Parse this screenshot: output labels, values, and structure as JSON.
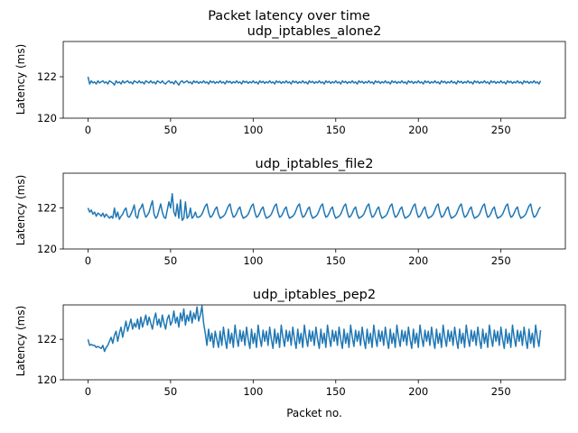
{
  "suptitle": "Packet latency over time",
  "chart_data": [
    {
      "type": "line",
      "title": "udp_iptables_alone2",
      "xlabel": "",
      "ylabel": "Latency (ms)",
      "xlim": [
        -15,
        289
      ],
      "ylim": [
        120,
        123.7
      ],
      "xticks": [
        0,
        50,
        100,
        150,
        200,
        250
      ],
      "yticks": [
        120,
        122
      ],
      "color": "#1f77b4",
      "n_points": 275,
      "series": [
        {
          "x_start": 0,
          "x_step": 1,
          "values": [
            122.0,
            121.65,
            121.8,
            121.7,
            121.75,
            121.65,
            121.8,
            121.7,
            121.75,
            121.8,
            121.7,
            121.75,
            121.65,
            121.8,
            121.75,
            121.7,
            121.6,
            121.8,
            121.7,
            121.75,
            121.65,
            121.8,
            121.7,
            121.75,
            121.8,
            121.7,
            121.75,
            121.65,
            121.8,
            121.75,
            121.7,
            121.8,
            121.7,
            121.75,
            121.65,
            121.8,
            121.75,
            121.7,
            121.8,
            121.7,
            121.75,
            121.65,
            121.8,
            121.75,
            121.7,
            121.8,
            121.7,
            121.65,
            121.75,
            121.8,
            121.7,
            121.75,
            121.65,
            121.8,
            121.7,
            121.6,
            121.75,
            121.8,
            121.7,
            121.75
          ],
          "pattern_values": [
            121.8,
            121.7,
            121.75,
            121.65,
            121.8,
            121.72,
            121.78,
            121.68,
            121.76,
            121.7
          ]
        }
      ]
    },
    {
      "type": "line",
      "title": "udp_iptables_file2",
      "xlabel": "",
      "ylabel": "Latency (ms)",
      "xlim": [
        -15,
        289
      ],
      "ylim": [
        120,
        123.7
      ],
      "xticks": [
        0,
        50,
        100,
        150,
        200,
        250
      ],
      "yticks": [
        120,
        122
      ],
      "color": "#1f77b4",
      "n_points": 275,
      "series": [
        {
          "x_start": 0,
          "x_step": 1,
          "values": [
            122.0,
            121.8,
            121.9,
            121.7,
            121.8,
            121.6,
            121.75,
            121.7,
            121.6,
            121.75,
            121.55,
            121.7,
            121.6,
            121.5,
            121.6,
            121.5,
            122.0,
            121.55,
            121.8,
            121.45,
            121.6,
            121.7,
            121.9,
            122.0,
            121.6,
            121.55,
            121.7,
            121.9,
            122.15,
            121.6,
            121.5,
            121.9,
            122.0,
            122.2,
            121.8,
            121.55,
            121.65,
            121.8,
            122.1,
            122.35,
            121.7,
            121.5,
            121.6,
            121.9,
            122.2,
            121.8,
            121.55,
            121.5,
            121.9,
            122.3,
            122.0,
            122.7,
            121.8,
            121.6,
            122.2,
            121.5,
            122.4,
            121.4,
            121.5,
            122.3,
            121.5,
            121.6,
            122.0,
            121.5,
            121.6,
            121.8,
            121.55
          ],
          "pattern_values": [
            121.55,
            121.6,
            121.7,
            121.9,
            122.1,
            122.2,
            121.8,
            121.55,
            121.6,
            121.75,
            121.95,
            122.05,
            121.7,
            121.5
          ]
        }
      ]
    },
    {
      "type": "line",
      "title": "udp_iptables_pep2",
      "xlabel": "Packet no.",
      "ylabel": "Latency (ms)",
      "xlim": [
        -15,
        289
      ],
      "ylim": [
        120,
        123.7
      ],
      "xticks": [
        0,
        50,
        100,
        150,
        200,
        250
      ],
      "yticks": [
        120,
        122
      ],
      "color": "#1f77b4",
      "n_points": 275,
      "series": [
        {
          "x_start": 0,
          "x_step": 1,
          "values": [
            122.0,
            121.7,
            121.75,
            121.7,
            121.7,
            121.6,
            121.65,
            121.6,
            121.55,
            121.7,
            121.4,
            121.6,
            121.7,
            121.9,
            122.1,
            121.8,
            122.2,
            122.4,
            121.9,
            122.3,
            122.6,
            122.1,
            122.5,
            122.9,
            122.4,
            122.7,
            123.0,
            122.5,
            122.8,
            122.6,
            123.0,
            122.5,
            123.1,
            122.6,
            122.9,
            123.2,
            122.7,
            123.1,
            122.8,
            122.5,
            123.0,
            123.3,
            122.7,
            123.0,
            122.6,
            123.2,
            122.8,
            122.5,
            123.0,
            123.2,
            122.7,
            122.9,
            123.4,
            122.8,
            123.1,
            122.6,
            123.3,
            122.9,
            123.5,
            122.7,
            123.2,
            122.9,
            123.4,
            122.8,
            123.3,
            123.0,
            123.6,
            122.9,
            123.2,
            123.65,
            122.8,
            122.3,
            121.7,
            122.5,
            121.9,
            122.3,
            121.6,
            122.4,
            122.0,
            121.6
          ],
          "pattern_values": [
            122.4,
            121.7,
            122.6,
            122.0,
            121.55,
            122.5,
            121.8,
            122.3,
            121.6,
            122.7,
            122.1,
            121.65,
            122.45,
            121.9
          ]
        }
      ]
    }
  ]
}
